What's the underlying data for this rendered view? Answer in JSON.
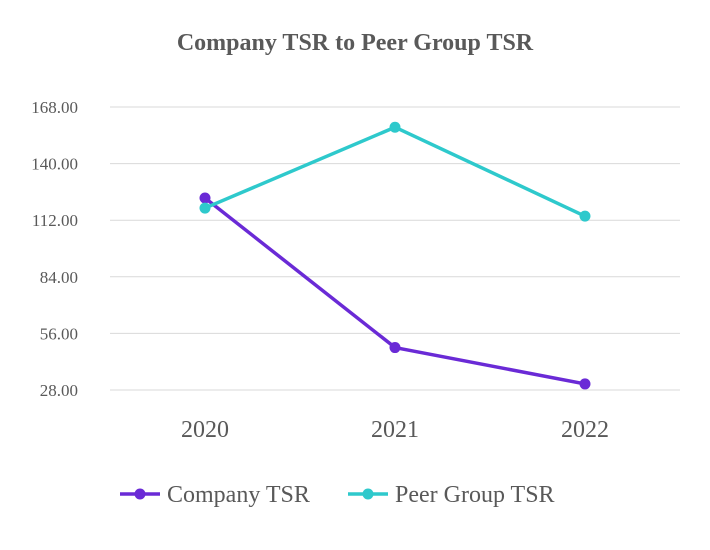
{
  "chart_data": {
    "type": "line",
    "title": "Company TSR to Peer Group TSR",
    "categories": [
      "2020",
      "2021",
      "2022"
    ],
    "yticks": [
      "28.00",
      "56.00",
      "84.00",
      "112.00",
      "140.00",
      "168.00"
    ],
    "ylim": [
      28,
      168
    ],
    "grid": true,
    "legend_position": "bottom",
    "series": [
      {
        "name": "Company TSR",
        "values": [
          123,
          49,
          31
        ],
        "color": "#6a2ad6"
      },
      {
        "name": "Peer Group TSR",
        "values": [
          118,
          158,
          114
        ],
        "color": "#2ec9cc"
      }
    ]
  }
}
